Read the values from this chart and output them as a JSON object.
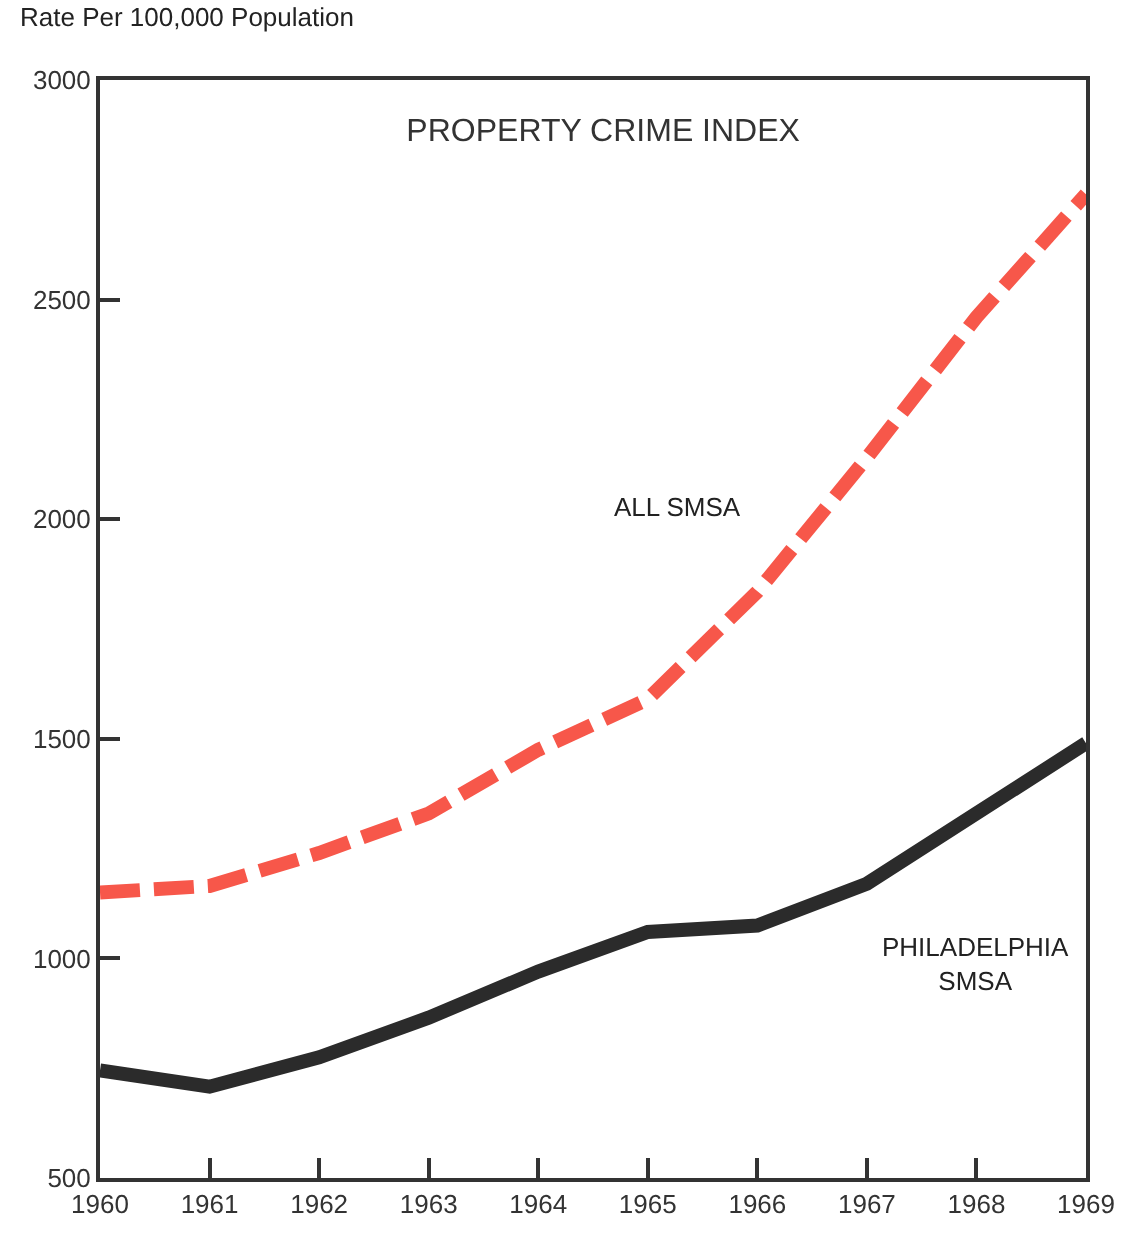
{
  "chart_data": {
    "type": "line",
    "title": "PROPERTY CRIME INDEX",
    "ylabel": "Rate Per 100,000 Population",
    "x": [
      1960,
      1961,
      1962,
      1963,
      1964,
      1965,
      1966,
      1967,
      1968,
      1969
    ],
    "series": [
      {
        "name": "ALL SMSA",
        "color": "#f7574a",
        "line_style": "dashed",
        "values": [
          1150,
          1165,
          1240,
          1330,
          1475,
          1590,
          1835,
          2140,
          2460,
          2740
        ]
      },
      {
        "name": "PHILADELPHIA SMSA",
        "color": "#2b2b2b",
        "line_style": "solid",
        "values": [
          745,
          708,
          775,
          865,
          970,
          1060,
          1075,
          1170,
          1330,
          1490
        ]
      }
    ],
    "xlim": [
      1960,
      1969
    ],
    "xticks": [
      1960,
      1961,
      1962,
      1963,
      1964,
      1965,
      1966,
      1967,
      1968,
      1969
    ],
    "ylim": [
      500,
      3000
    ],
    "yticks": [
      500,
      1000,
      1500,
      2000,
      2500,
      3000
    ],
    "grid": false,
    "legend": false,
    "marker": "none"
  }
}
